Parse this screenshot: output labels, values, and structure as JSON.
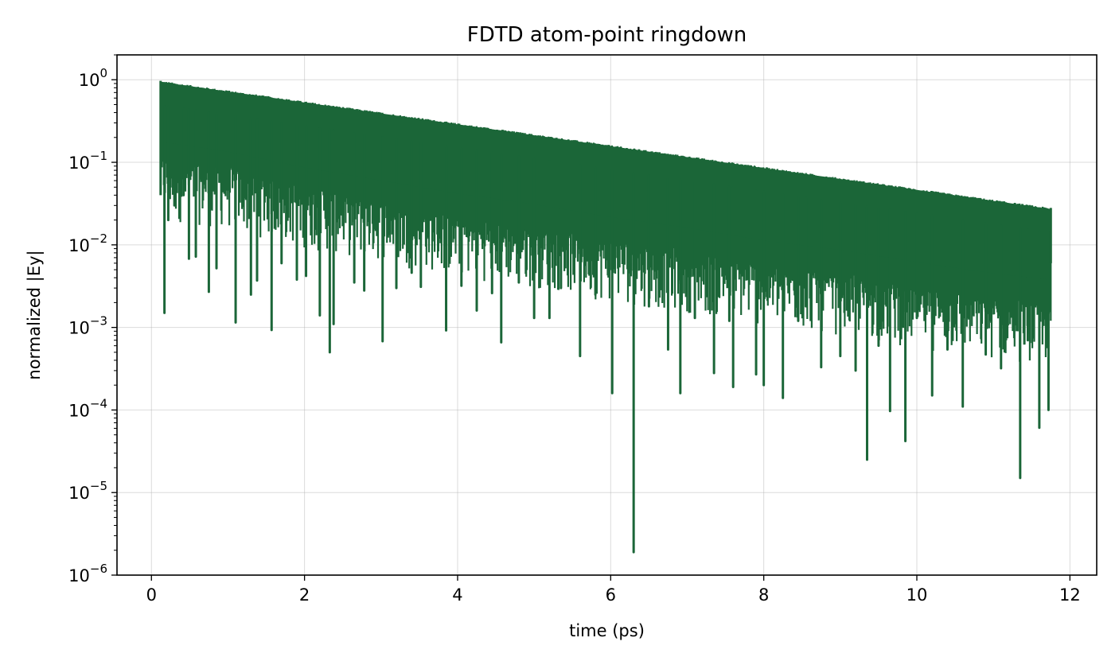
{
  "chart_data": {
    "type": "line",
    "title": "FDTD atom-point ringdown",
    "xlabel": "time (ps)",
    "ylabel": "normalized |Ey|",
    "xlim": [
      -0.45,
      12.35
    ],
    "ylim": [
      1e-06,
      2
    ],
    "yscale": "log",
    "grid": true,
    "x_ticks": [
      0,
      2,
      4,
      6,
      8,
      10,
      12
    ],
    "x_tick_labels": [
      "0",
      "2",
      "4",
      "6",
      "8",
      "10",
      "12"
    ],
    "y_ticks": [
      1e-06,
      1e-05,
      0.0001,
      0.001,
      0.01,
      0.1,
      1
    ],
    "y_tick_labels": [
      {
        "base": "10",
        "exp": "−6"
      },
      {
        "base": "10",
        "exp": "−5"
      },
      {
        "base": "10",
        "exp": "−4"
      },
      {
        "base": "10",
        "exp": "−3"
      },
      {
        "base": "10",
        "exp": "−2"
      },
      {
        "base": "10",
        "exp": "−1"
      },
      {
        "base": "10",
        "exp": "0"
      }
    ],
    "series": [
      {
        "color": "#1b6638",
        "t_start": 0.12,
        "t_end": 11.75,
        "envelope_start": 0.97,
        "envelope_end": 0.028,
        "envelope_floor": [
          [
            0.12,
            0.04
          ],
          [
            1.0,
            0.03
          ],
          [
            2.0,
            0.018
          ],
          [
            3.0,
            0.012
          ],
          [
            4.0,
            0.008
          ],
          [
            5.0,
            0.006
          ],
          [
            6.0,
            0.004
          ],
          [
            7.0,
            0.003
          ],
          [
            8.0,
            0.002
          ],
          [
            9.0,
            0.0016
          ],
          [
            10.0,
            0.0011
          ],
          [
            11.0,
            0.0008
          ],
          [
            11.75,
            0.0007
          ]
        ],
        "dips": [
          [
            0.17,
            0.0015
          ],
          [
            0.22,
            0.02
          ],
          [
            0.3,
            0.03
          ],
          [
            0.42,
            0.04
          ],
          [
            0.49,
            0.0068
          ],
          [
            0.58,
            0.0072
          ],
          [
            0.75,
            0.0027
          ],
          [
            0.85,
            0.0052
          ],
          [
            1.1,
            0.00115
          ],
          [
            1.3,
            0.0025
          ],
          [
            1.38,
            0.0037
          ],
          [
            1.57,
            0.00093
          ],
          [
            1.7,
            0.006
          ],
          [
            1.9,
            0.0038
          ],
          [
            2.02,
            0.0042
          ],
          [
            2.2,
            0.0014
          ],
          [
            2.33,
            0.0005
          ],
          [
            2.38,
            0.0011
          ],
          [
            2.65,
            0.0035
          ],
          [
            2.78,
            0.0028
          ],
          [
            3.02,
            0.00068
          ],
          [
            3.2,
            0.003
          ],
          [
            3.4,
            0.0046
          ],
          [
            3.52,
            0.0031
          ],
          [
            3.85,
            0.00092
          ],
          [
            4.05,
            0.0032
          ],
          [
            4.25,
            0.0016
          ],
          [
            4.45,
            0.0026
          ],
          [
            4.57,
            0.00066
          ],
          [
            4.8,
            0.0035
          ],
          [
            5.0,
            0.0013
          ],
          [
            5.2,
            0.0013
          ],
          [
            5.35,
            0.003
          ],
          [
            5.6,
            0.00045
          ],
          [
            5.8,
            0.0025
          ],
          [
            6.02,
            0.00016
          ],
          [
            6.3,
            1.9e-06
          ],
          [
            6.5,
            0.0018
          ],
          [
            6.75,
            0.00054
          ],
          [
            6.91,
            0.00016
          ],
          [
            7.1,
            0.0013
          ],
          [
            7.35,
            0.00028
          ],
          [
            7.55,
            0.0012
          ],
          [
            7.6,
            0.00019
          ],
          [
            7.9,
            0.00027
          ],
          [
            8.0,
            0.0002
          ],
          [
            8.25,
            0.00014
          ],
          [
            8.45,
            0.0012
          ],
          [
            8.55,
            0.0018
          ],
          [
            8.75,
            0.00033
          ],
          [
            9.0,
            0.00045
          ],
          [
            9.2,
            0.0003
          ],
          [
            9.35,
            2.5e-05
          ],
          [
            9.5,
            0.0006
          ],
          [
            9.65,
            9.7e-05
          ],
          [
            9.85,
            4.2e-05
          ],
          [
            10.0,
            0.0013
          ],
          [
            10.2,
            0.00015
          ],
          [
            10.4,
            0.00054
          ],
          [
            10.6,
            0.00011
          ],
          [
            10.9,
            0.00047
          ],
          [
            11.1,
            0.00032
          ],
          [
            11.35,
            1.5e-05
          ],
          [
            11.45,
            0.0007
          ],
          [
            11.6,
            6.1e-05
          ],
          [
            11.72,
            0.0001
          ]
        ]
      }
    ]
  }
}
